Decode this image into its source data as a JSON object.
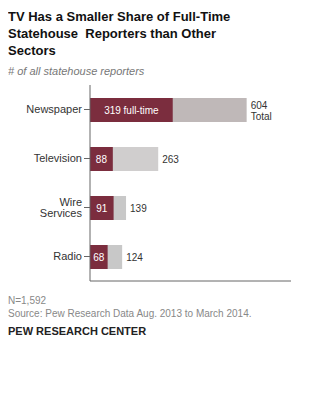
{
  "chart_data": {
    "type": "bar",
    "orientation": "horizontal",
    "title": "TV Has a Smaller Share of Full-Time\nStatehouse  Reporters than Other\nSectors",
    "subtitle": "# of all statehouse reporters",
    "annotations": [
      "N=1,592",
      "Source: Pew Research Data Aug. 2013 to March 2014.",
      "PEW RESEARCH CENTER"
    ],
    "categories": [
      "Newspaper",
      "Television",
      "Wire Services",
      "Radio"
    ],
    "series": [
      {
        "colors": [
          "#bfb8b8",
          "#d0cece",
          "#c8c8c8",
          "#c8c8c8"
        ],
        "values": [
          604,
          263,
          139,
          124
        ],
        "value_labels": [
          "604\nTotal",
          "263",
          "139",
          "124"
        ]
      },
      {
        "color": "#7b2d3e",
        "values": [
          319,
          88,
          91,
          68
        ],
        "value_labels": [
          "319 full-time",
          "88",
          "91",
          "68"
        ]
      }
    ],
    "xlim": [
      0,
      775
    ],
    "tick_labels": false,
    "data_labels": true,
    "grid": false
  }
}
